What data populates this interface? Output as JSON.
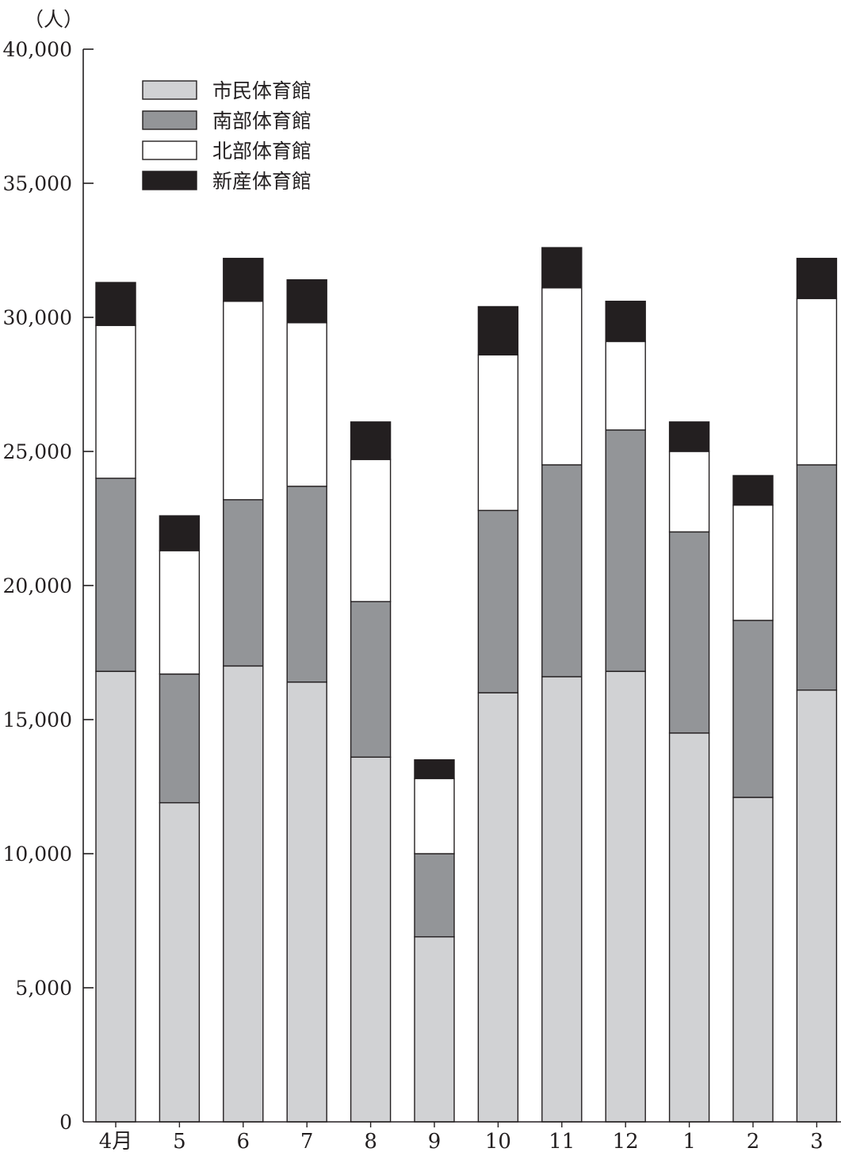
{
  "chart_data": {
    "type": "bar",
    "stacked": true,
    "unit_label": "（人）",
    "categories": [
      "4月",
      "5",
      "6",
      "7",
      "8",
      "9",
      "10",
      "11",
      "12",
      "1",
      "2",
      "3"
    ],
    "ylim": [
      0,
      40000
    ],
    "yticks": [
      0,
      5000,
      10000,
      15000,
      20000,
      25000,
      30000,
      35000,
      40000
    ],
    "ytick_labels": [
      "0",
      "5,000",
      "10,000",
      "15,000",
      "20,000",
      "25,000",
      "30,000",
      "35,000",
      "40,000"
    ],
    "grid": false,
    "legend_position": "top-left",
    "series": [
      {
        "name": "市民体育館",
        "color": "#d1d2d4",
        "values": [
          16800,
          11900,
          17000,
          16400,
          13600,
          6900,
          16000,
          16600,
          16800,
          14500,
          12100,
          16100
        ]
      },
      {
        "name": "南部体育館",
        "color": "#939598",
        "values": [
          7200,
          4800,
          6200,
          7300,
          5800,
          3100,
          6800,
          7900,
          9000,
          7500,
          6600,
          8400
        ]
      },
      {
        "name": "北部体育館",
        "color": "#ffffff",
        "values": [
          5700,
          4600,
          7400,
          6100,
          5300,
          2800,
          5800,
          6600,
          3300,
          3000,
          4300,
          6200
        ]
      },
      {
        "name": "新産体育館",
        "color": "#231f20",
        "values": [
          1600,
          1300,
          1600,
          1600,
          1400,
          700,
          1800,
          1500,
          1500,
          1100,
          1100,
          1500
        ]
      }
    ]
  }
}
